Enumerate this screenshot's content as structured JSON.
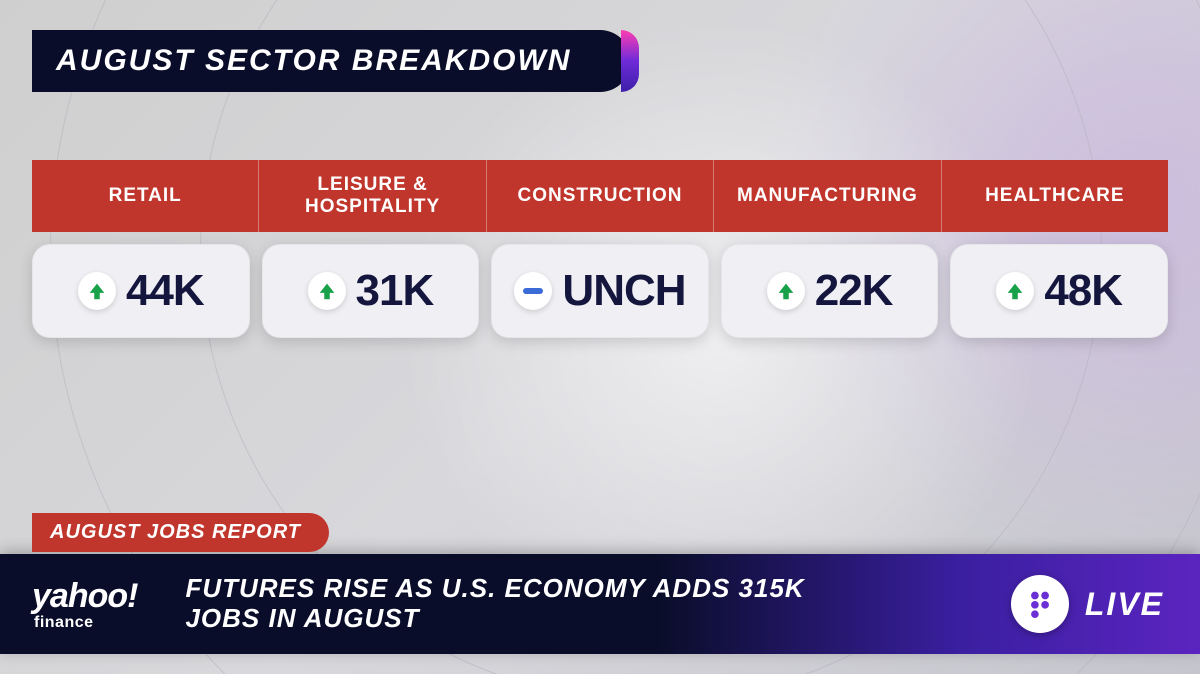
{
  "title": "AUGUST SECTOR BREAKDOWN",
  "colors": {
    "title_bg": "#0a0d2a",
    "header_bg": "#c0362c",
    "card_bg": "#f0f0f4",
    "value_text": "#14163e",
    "up_arrow": "#18a149",
    "unch_dash": "#3a6bd6",
    "ticker_bg_start": "#0a0d2a",
    "ticker_bg_end": "#5b24c0",
    "f_badge_dot": "#6b2fd6",
    "background": "#d0d0d0"
  },
  "sectors": [
    {
      "label": "RETAIL",
      "direction": "up",
      "value": "44K"
    },
    {
      "label": "LEISURE &\nHOSPITALITY",
      "direction": "up",
      "value": "31K"
    },
    {
      "label": "CONSTRUCTION",
      "direction": "unch",
      "value": "UNCH"
    },
    {
      "label": "MANUFACTURING",
      "direction": "up",
      "value": "22K"
    },
    {
      "label": "HEALTHCARE",
      "direction": "up",
      "value": "48K"
    }
  ],
  "tag": "AUGUST JOBS REPORT",
  "logo": {
    "name": "yahoo!",
    "sub": "finance"
  },
  "headline": "FUTURES RISE AS U.S. ECONOMY ADDS 315K JOBS IN AUGUST",
  "live": "LIVE"
}
